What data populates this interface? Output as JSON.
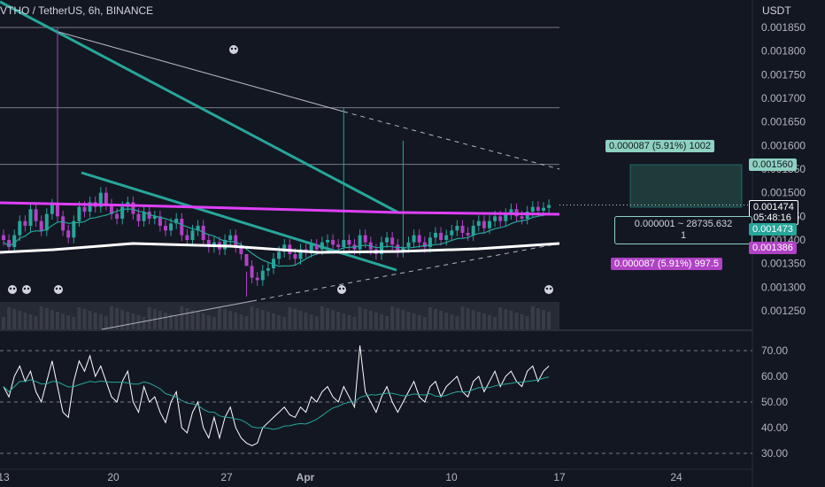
{
  "header": {
    "symbol": "VTHO / TetherUS, 6h, BINANCE"
  },
  "price_axis": {
    "unit": "USDT",
    "ticks": [
      "0.001850",
      "0.001800",
      "0.001750",
      "0.001700",
      "0.001650",
      "0.001600",
      "0.001550",
      "0.001500",
      "0.001450",
      "0.001400",
      "0.001350",
      "0.001300",
      "0.001250"
    ]
  },
  "rsi_axis": {
    "ticks": [
      "70.00",
      "60.00",
      "50.00",
      "40.00",
      "30.00"
    ]
  },
  "time_axis": {
    "ticks": [
      "13",
      "20",
      "27",
      "Apr",
      "10",
      "17",
      "24"
    ]
  },
  "tags": {
    "current_price": "0.001474",
    "countdown": "05:48:16",
    "measure_top": "0.000087 (5.91%) 1002",
    "level_high": "0.001560",
    "mid_line1": "0.000001 ~ 28735.632",
    "mid_line2": "1",
    "level_low1": "0.001473",
    "level_low2": "0.001386",
    "measure_bottom": "0.000087 (5.91%) 997.5"
  },
  "colors": {
    "background": "#131722",
    "up": "#26a69a",
    "down": "#b042c4",
    "trendline": "#26a69a",
    "magenta_line": "#e040fb",
    "white_line": "#ffffff",
    "rsi": "#ffffff",
    "rsi_ma": "#26a69a",
    "grid": "#2a2e39"
  },
  "chart_data": [
    {
      "type": "candlestick",
      "title": "VTHO / TetherUS, 6h, BINANCE",
      "ylabel": "USDT",
      "ylim": [
        0.00122,
        0.00188
      ],
      "x_ticks": [
        "13",
        "20",
        "27",
        "Apr",
        "10",
        "17",
        "24"
      ],
      "y_ticks": [
        0.00185,
        0.0018,
        0.00175,
        0.0017,
        0.00165,
        0.0016,
        0.00155,
        0.0015,
        0.00145,
        0.0014,
        0.00135,
        0.0013,
        0.00125
      ],
      "close": [
        0.0014,
        0.001385,
        0.00141,
        0.00144,
        0.00143,
        0.001465,
        0.00144,
        0.00142,
        0.001455,
        0.001475,
        0.00145,
        0.00142,
        0.001405,
        0.00144,
        0.00147,
        0.00146,
        0.00148,
        0.00147,
        0.0015,
        0.001475,
        0.001455,
        0.001445,
        0.00147,
        0.00148,
        0.001455,
        0.00144,
        0.00146,
        0.001445,
        0.00145,
        0.00143,
        0.00142,
        0.001435,
        0.001445,
        0.00141,
        0.0014,
        0.00142,
        0.00143,
        0.0014,
        0.001385,
        0.001395,
        0.00138,
        0.0014,
        0.00141,
        0.001385,
        0.00137,
        0.001345,
        0.00132,
        0.001315,
        0.001335,
        0.00134,
        0.00136,
        0.001375,
        0.00139,
        0.00137,
        0.00136,
        0.00138,
        0.001375,
        0.00139,
        0.00138,
        0.001395,
        0.0014,
        0.00139,
        0.001385,
        0.0014,
        0.00139,
        0.00138,
        0.00141,
        0.001395,
        0.00138,
        0.00137,
        0.001395,
        0.001405,
        0.00139,
        0.001375,
        0.001385,
        0.001395,
        0.00141,
        0.001395,
        0.001385,
        0.001405,
        0.001415,
        0.0014,
        0.00141,
        0.00142,
        0.00143,
        0.001415,
        0.00141,
        0.00143,
        0.00144,
        0.001425,
        0.00144,
        0.00145,
        0.00144,
        0.001455,
        0.001465,
        0.00145,
        0.001445,
        0.00146,
        0.00147,
        0.001462,
        0.001468,
        0.001474
      ],
      "indicators": {
        "rsi_14": [
          56,
          52,
          60,
          64,
          58,
          62,
          54,
          50,
          58,
          66,
          56,
          46,
          44,
          58,
          66,
          62,
          68,
          60,
          64,
          58,
          52,
          50,
          58,
          62,
          50,
          46,
          56,
          50,
          52,
          46,
          42,
          50,
          54,
          40,
          38,
          46,
          50,
          40,
          36,
          44,
          36,
          44,
          48,
          40,
          36,
          34,
          33,
          34,
          40,
          42,
          44,
          46,
          48,
          45,
          44,
          48,
          46,
          52,
          50,
          54,
          56,
          52,
          50,
          56,
          52,
          48,
          72,
          54,
          50,
          46,
          52,
          56,
          50,
          46,
          50,
          54,
          58,
          52,
          50,
          56,
          58,
          52,
          56,
          58,
          60,
          54,
          52,
          58,
          60,
          54,
          58,
          62,
          56,
          60,
          62,
          58,
          56,
          62,
          64,
          58,
          62,
          64
        ],
        "rsi_levels": [
          70,
          50,
          30
        ]
      },
      "levels": [
        0.00156,
        0.001473,
        0.001386
      ]
    }
  ]
}
